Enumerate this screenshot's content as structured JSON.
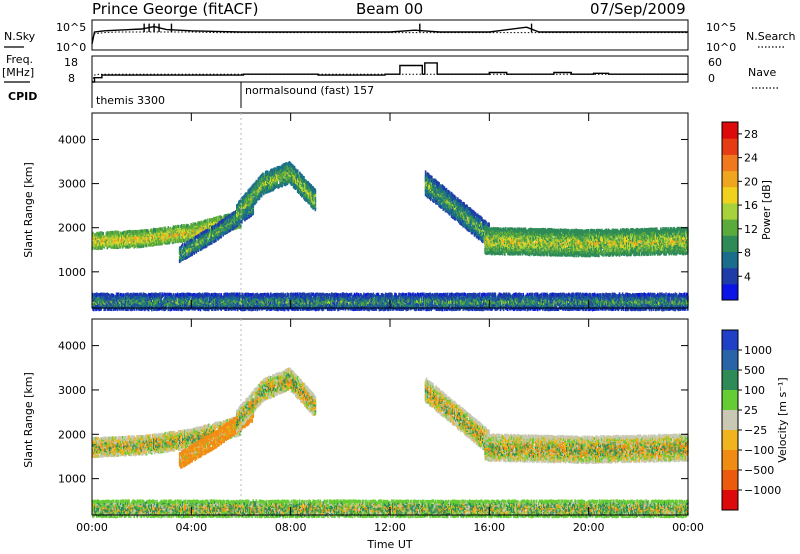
{
  "header": {
    "station": "Prince George (fitACF)",
    "beam": "Beam 00",
    "date": "07/Sep/2009"
  },
  "top_panel_labels": {
    "n_sky": "N.Sky",
    "n_search": "N.Search",
    "sky_tick_high": "10^5",
    "sky_tick_low": "10^0",
    "search_tick_high": "10^5",
    "search_tick_low": "10^0",
    "freq_label": "Freq.",
    "freq_unit": "[MHz]",
    "freq_tick_high": "18",
    "freq_tick_low": "8",
    "nave_label": "Nave",
    "nave_tick_high": "60",
    "nave_tick_low": "0",
    "cpid_label": "CPID"
  },
  "cpid_segments": [
    {
      "start_hour": 0.0,
      "label": "themis 3300"
    },
    {
      "start_hour": 6.0,
      "label": "normalsound (fast) 157"
    }
  ],
  "power_scale": {
    "title": "Power [dB]",
    "ticks": [
      "4",
      "8",
      "12",
      "16",
      "20",
      "24",
      "28"
    ],
    "colors": [
      "#0a14e6",
      "#1e3ca8",
      "#1a6e8c",
      "#2e8b57",
      "#5aaa3c",
      "#a8d23c",
      "#f0d21e",
      "#f0a51e",
      "#f0781e",
      "#e63c14",
      "#dc0a0a"
    ]
  },
  "velocity_scale": {
    "title": "Velocity [m s⁻¹]",
    "ticks": [
      "1000",
      "500",
      "100",
      "25",
      "−25",
      "−100",
      "−500",
      "−1000"
    ],
    "colors": [
      "#2040c8",
      "#2a64a8",
      "#2e8b57",
      "#66cc33",
      "#c8c8b4",
      "#f0b41e",
      "#f08c14",
      "#ec5a0e",
      "#dc0a0a"
    ]
  },
  "chart_data": [
    {
      "type": "line",
      "name": "sky-search-noise",
      "x_unit": "hour UT",
      "x": [
        0,
        0.1,
        0.5,
        1,
        2,
        2.5,
        3,
        4,
        5,
        6,
        8,
        10,
        12,
        13,
        14,
        16,
        17.5,
        18,
        20,
        22,
        24
      ],
      "series": [
        {
          "name": "N.Sky",
          "values": [
            1,
            3.0,
            3.2,
            3.3,
            3.5,
            3.9,
            3.4,
            3.2,
            3.1,
            3.0,
            3.0,
            3.0,
            3.0,
            3.3,
            3.0,
            3.0,
            3.8,
            3.0,
            3.0,
            3.0,
            3.0
          ]
        },
        {
          "name": "N.Search",
          "values": [
            1.5,
            2.7,
            2.9,
            3.0,
            3.0,
            3.0,
            3.0,
            3.0,
            2.9,
            2.9,
            2.9,
            2.9,
            2.9,
            2.9,
            2.9,
            2.9,
            2.9,
            2.9,
            2.9,
            2.9,
            2.9
          ]
        }
      ],
      "ylabel_left": "N.Sky",
      "ylabel_right": "N.Search",
      "ylim": [
        0,
        5
      ],
      "ylim_unit": "log10"
    },
    {
      "type": "line",
      "name": "frequency-nave",
      "x_unit": "hour UT",
      "series": [
        {
          "name": "Freq.",
          "unit": "MHz",
          "x": [
            0,
            0.1,
            0.3,
            24
          ],
          "values": [
            8,
            10.7,
            11.0,
            11.0
          ]
        },
        {
          "name": "Nave",
          "x": [
            0,
            0.1,
            0.4,
            6,
            6.1,
            9,
            9.1,
            11.8,
            12.4,
            13.3,
            13.4,
            13.9,
            16.0,
            16.7,
            17.3,
            18.6,
            19.3,
            20.2,
            20.8,
            22.0,
            24
          ],
          "values": [
            0,
            10,
            16,
            16,
            18,
            18,
            16,
            18,
            38,
            18,
            44,
            18,
            22,
            18,
            18,
            22,
            18,
            20,
            18,
            18,
            18
          ]
        }
      ],
      "ylabel_left": "Freq. [MHz]",
      "ylim_left": [
        8,
        18
      ],
      "ylabel_right": "Nave",
      "ylim_right": [
        0,
        60
      ]
    },
    {
      "type": "heatmap",
      "name": "power",
      "xlabel": "Time UT",
      "ylabel": "Slant Range [km]",
      "x_ticks": [
        "00:00",
        "04:00",
        "08:00",
        "12:00",
        "16:00",
        "20:00",
        "00:00"
      ],
      "x_tick_hours": [
        0,
        4,
        8,
        12,
        16,
        20,
        24
      ],
      "y_ticks": [
        1000,
        2000,
        3000,
        4000
      ],
      "xlim_hours": [
        0,
        24
      ],
      "ylim_km": [
        180,
        4600
      ],
      "colorbar_label": "Power [dB]",
      "colorbar_range": [
        0,
        30
      ],
      "regions": [
        {
          "from_hour": 0.0,
          "to_hour": 6.0,
          "center_km": [
            1700,
            1750,
            1900,
            2200
          ],
          "half_width_km": 120,
          "value_db": 18
        },
        {
          "from_hour": 3.5,
          "to_hour": 6.5,
          "center_km": [
            1400,
            1900,
            2500
          ],
          "half_width_km": 100,
          "value_db": 12
        },
        {
          "from_hour": 5.8,
          "to_hour": 9.0,
          "center_km": [
            2300,
            3000,
            3250,
            2600
          ],
          "half_width_km": 160,
          "value_db": 14
        },
        {
          "from_hour": 13.4,
          "to_hour": 16.0,
          "center_km": [
            3000,
            2400,
            1800
          ],
          "half_width_km": 200,
          "value_db": 12
        },
        {
          "from_hour": 15.8,
          "to_hour": 24.0,
          "center_km": [
            1700,
            1650,
            1700
          ],
          "half_width_km": 220,
          "value_db": 16
        },
        {
          "from_hour": 0.0,
          "to_hour": 24.0,
          "center_km": [
            320,
            320
          ],
          "half_width_km": 110,
          "value_db": 10
        }
      ]
    },
    {
      "type": "heatmap",
      "name": "velocity",
      "xlabel": "Time UT",
      "ylabel": "Slant Range [km]",
      "x_ticks": [
        "00:00",
        "04:00",
        "08:00",
        "12:00",
        "16:00",
        "20:00",
        "00:00"
      ],
      "x_tick_hours": [
        0,
        4,
        8,
        12,
        16,
        20,
        24
      ],
      "y_ticks": [
        1000,
        2000,
        3000,
        4000
      ],
      "xlim_hours": [
        0,
        24
      ],
      "ylim_km": [
        180,
        4600
      ],
      "colorbar_label": "Velocity [m s⁻¹]",
      "colorbar_range": [
        -1000,
        1000
      ],
      "regions": [
        {
          "from_hour": 0.0,
          "to_hour": 6.0,
          "center_km": [
            1700,
            1750,
            1900,
            2200
          ],
          "half_width_km": 140,
          "value_ms": 0
        },
        {
          "from_hour": 3.5,
          "to_hour": 6.5,
          "center_km": [
            1400,
            1900,
            2500
          ],
          "half_width_km": 100,
          "value_ms": -150
        },
        {
          "from_hour": 5.8,
          "to_hour": 9.0,
          "center_km": [
            2300,
            3000,
            3250,
            2600
          ],
          "half_width_km": 160,
          "value_ms": 0
        },
        {
          "from_hour": 13.4,
          "to_hour": 16.0,
          "center_km": [
            3000,
            2400,
            1800
          ],
          "half_width_km": 200,
          "value_ms": 0
        },
        {
          "from_hour": 15.8,
          "to_hour": 24.0,
          "center_km": [
            1700,
            1650,
            1700
          ],
          "half_width_km": 220,
          "value_ms": 0
        },
        {
          "from_hour": 0.0,
          "to_hour": 24.0,
          "center_km": [
            320,
            320
          ],
          "half_width_km": 100,
          "value_ms": 60
        }
      ]
    }
  ]
}
